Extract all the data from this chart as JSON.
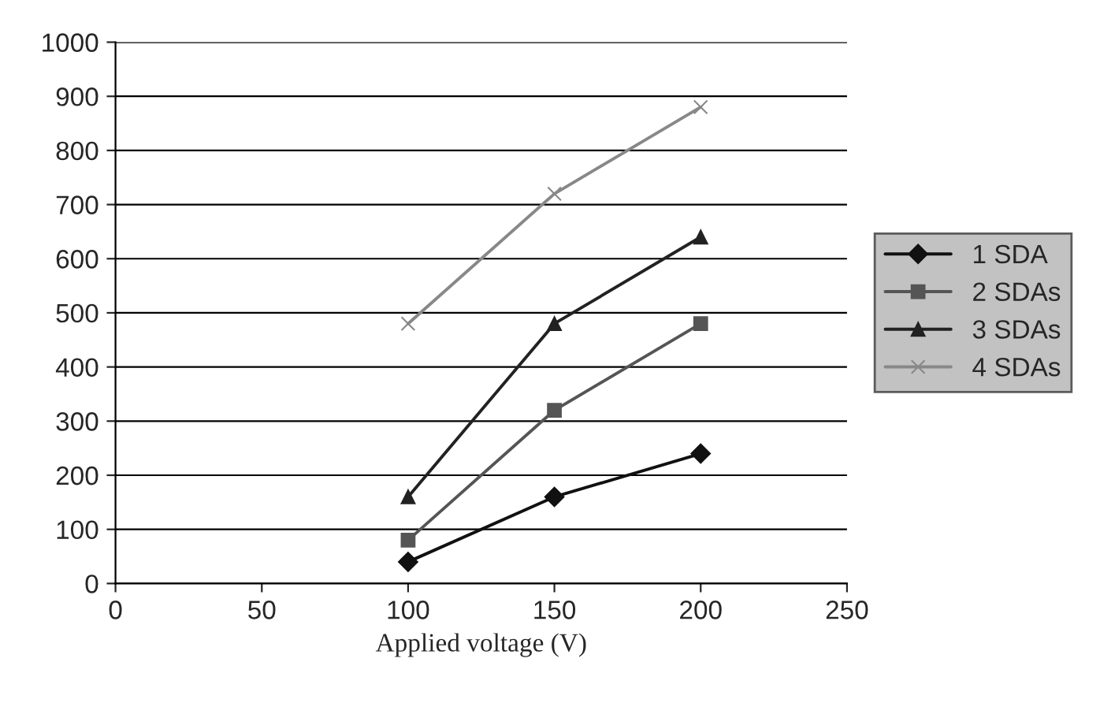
{
  "chart_data": {
    "type": "line",
    "xlabel": "Applied voltage (V)",
    "x": [
      100,
      150,
      200
    ],
    "series": [
      {
        "name": "1 SDA",
        "color": "#111111",
        "marker": "diamond",
        "values": [
          40,
          160,
          240
        ]
      },
      {
        "name": "2 SDAs",
        "color": "#555555",
        "marker": "square",
        "values": [
          80,
          320,
          480
        ]
      },
      {
        "name": "3 SDAs",
        "color": "#222222",
        "marker": "triangle",
        "values": [
          160,
          480,
          640
        ]
      },
      {
        "name": "4 SDAs",
        "color": "#888888",
        "marker": "cross",
        "values": [
          480,
          720,
          880
        ]
      }
    ],
    "xlim": [
      0,
      250
    ],
    "xticks": [
      0,
      50,
      100,
      150,
      200,
      250
    ],
    "ylim": [
      0,
      1000
    ],
    "yticks": [
      0,
      100,
      200,
      300,
      400,
      500,
      600,
      700,
      800,
      900,
      1000
    ],
    "grid": "y",
    "legend": "right"
  }
}
